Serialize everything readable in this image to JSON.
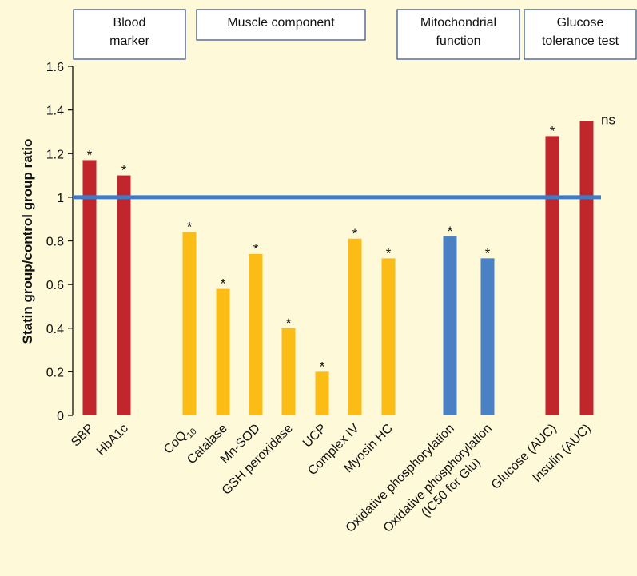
{
  "chart_data": {
    "type": "bar",
    "ylabel": "Statin group/control group ratio",
    "ylim": [
      0,
      1.6
    ],
    "yticks": [
      "0",
      "0.2",
      "0.4",
      "0.6",
      "0.8",
      "1",
      "1.2",
      "1.4",
      "1.6"
    ],
    "reference_line": 1,
    "reference_color": "#3E7CC9",
    "colors": {
      "red": "#C0262C",
      "yellow": "#FBBC16",
      "blue": "#4A80C4"
    },
    "categories": [
      {
        "label": "SBP",
        "value": 1.17,
        "color": "red",
        "mark": "*"
      },
      {
        "label": "HbA1c",
        "value": 1.1,
        "color": "red",
        "mark": "*"
      },
      {
        "label": "CoQ10",
        "label_main": "CoQ",
        "label_sub": "10",
        "value": 0.84,
        "color": "yellow",
        "mark": "*"
      },
      {
        "label": "Catalase",
        "value": 0.58,
        "color": "yellow",
        "mark": "*"
      },
      {
        "label": "Mn-SOD",
        "value": 0.74,
        "color": "yellow",
        "mark": "*"
      },
      {
        "label": "GSH peroxidase",
        "value": 0.4,
        "color": "yellow",
        "mark": "*"
      },
      {
        "label": "UCP",
        "value": 0.2,
        "color": "yellow",
        "mark": "*"
      },
      {
        "label": "Complex IV",
        "value": 0.81,
        "color": "yellow",
        "mark": "*"
      },
      {
        "label": "Myosin HC",
        "value": 0.72,
        "color": "yellow",
        "mark": "*"
      },
      {
        "label": "Oxidative phosphorylation",
        "value": 0.82,
        "color": "blue",
        "mark": "*"
      },
      {
        "label": "Oxidative phosphorylation (IC50 for Glu)",
        "label_lines": [
          "Oxidative phosphorylation",
          "(IC50 for Glu)"
        ],
        "value": 0.72,
        "color": "blue",
        "mark": "*"
      },
      {
        "label": "Glucose (AUC)",
        "value": 1.28,
        "color": "red",
        "mark": "*"
      },
      {
        "label": "Insulin (AUC)",
        "value": 1.35,
        "color": "red",
        "mark": "ns"
      }
    ],
    "groups": [
      {
        "lines": [
          "Blood",
          "marker"
        ]
      },
      {
        "lines": [
          "Muscle component"
        ]
      },
      {
        "lines": [
          "Mitochondrial",
          "function"
        ]
      },
      {
        "lines": [
          "Glucose",
          "tolerance test"
        ]
      }
    ]
  }
}
